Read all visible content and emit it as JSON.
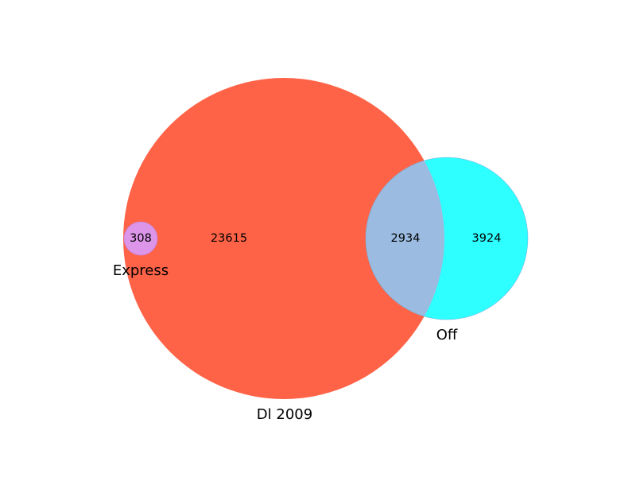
{
  "diagram": {
    "type": "venn3",
    "sets": [
      {
        "name": "Dl 2009",
        "color": "#ff6347"
      },
      {
        "name": "Off",
        "color": "#2effff"
      },
      {
        "name": "Express",
        "color": "#dc95e8"
      }
    ],
    "regions": [
      {
        "id": "dl_only",
        "sets": [
          "Dl 2009"
        ],
        "count": "23615",
        "color": "#ff6347"
      },
      {
        "id": "dl_off",
        "sets": [
          "Dl 2009",
          "Off"
        ],
        "count": "2934",
        "color": "#9bbbe0"
      },
      {
        "id": "off_only",
        "sets": [
          "Off"
        ],
        "count": "3924",
        "color": "#2effff"
      },
      {
        "id": "dl_express",
        "sets": [
          "Dl 2009",
          "Express"
        ],
        "count": "308",
        "color": "#dc95e8"
      }
    ]
  }
}
